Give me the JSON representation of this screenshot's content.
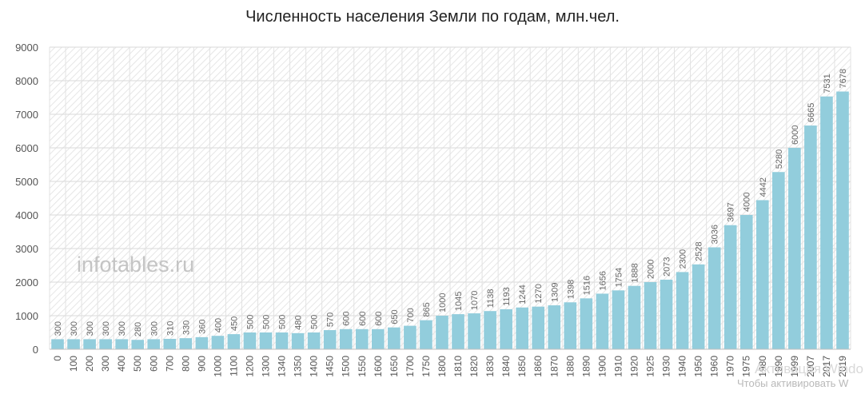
{
  "chart_data": {
    "type": "bar",
    "title": "Численность населения Земли по годам, млн.чел.",
    "xlabel": "",
    "ylabel": "",
    "ylim": [
      0,
      9000
    ],
    "yticks": [
      0,
      1000,
      2000,
      3000,
      4000,
      5000,
      6000,
      7000,
      8000,
      9000
    ],
    "grid": true,
    "legend": "none",
    "bar_color": "#92cddc",
    "categories": [
      "0",
      "100",
      "200",
      "300",
      "400",
      "500",
      "600",
      "700",
      "800",
      "900",
      "1000",
      "1100",
      "1200",
      "1300",
      "1340",
      "1350",
      "1400",
      "1450",
      "1500",
      "1550",
      "1600",
      "1650",
      "1700",
      "1750",
      "1800",
      "1810",
      "1820",
      "1830",
      "1840",
      "1850",
      "1860",
      "1870",
      "1880",
      "1890",
      "1900",
      "1910",
      "1920",
      "1925",
      "1930",
      "1940",
      "1950",
      "1960",
      "1970",
      "1975",
      "1980",
      "1990",
      "1999",
      "2007",
      "2017",
      "2019"
    ],
    "values": [
      300,
      300,
      300,
      300,
      300,
      280,
      300,
      310,
      330,
      360,
      400,
      450,
      500,
      500,
      500,
      480,
      500,
      570,
      600,
      600,
      600,
      650,
      700,
      865,
      1000,
      1045,
      1070,
      1138,
      1193,
      1244,
      1270,
      1309,
      1398,
      1516,
      1656,
      1754,
      1888,
      2000,
      2073,
      2300,
      2528,
      3036,
      3697,
      4000,
      4442,
      5280,
      6000,
      6665,
      7531,
      7678
    ]
  },
  "watermark": "infotables.ru",
  "os_notice": {
    "line1": "Активация Windo",
    "line2": "Чтобы активировать W"
  }
}
